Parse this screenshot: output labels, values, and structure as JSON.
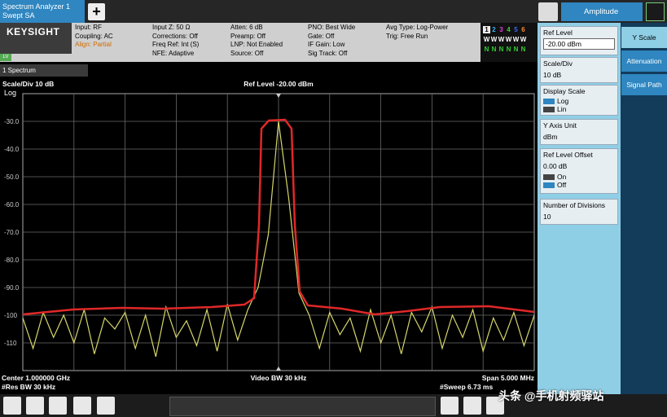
{
  "tab": {
    "line1": "Spectrum Analyzer 1",
    "line2": "Swept SA"
  },
  "menu": "Amplitude",
  "logo": "KEYSIGHT",
  "mode_badge": "LV",
  "status": [
    [
      "Input: RF",
      "Coupling: AC",
      "Align: Partial"
    ],
    [
      "Input Z: 50 Ω",
      "Corrections: Off",
      "Freq Ref: Int (S)",
      "NFE: Adaptive"
    ],
    [
      "Atten: 6 dB",
      "Preamp: Off",
      "LNP: Not Enabled",
      "Source: Off"
    ],
    [
      "PNO: Best Wide",
      "Gate: Off",
      "IF Gain: Low",
      "Sig Track: Off"
    ],
    [
      "Avg Type: Log-Power",
      "Trig: Free Run"
    ]
  ],
  "traces": {
    "numbers": [
      "1",
      "2",
      "3",
      "4",
      "5",
      "6"
    ],
    "types": [
      "W",
      "W",
      "W",
      "W",
      "W",
      "W"
    ],
    "detectors": [
      "N",
      "N",
      "N",
      "N",
      "N",
      "N"
    ]
  },
  "window": "1 Spectrum",
  "scale_div": "Scale/Div 10 dB",
  "ref_level": "Ref Level -20.00 dBm",
  "scale_type": "Log",
  "footer": {
    "center": "Center 1.000000 GHz",
    "video_bw": "Video BW 30 kHz",
    "span": "Span 5.000 MHz",
    "res_bw": "#Res BW 30 kHz",
    "sweep": "#Sweep 6.73 ms"
  },
  "plot": {
    "xlim": [
      997.5,
      1002.5
    ],
    "ylim": [
      -120,
      -20
    ],
    "yticks": [
      {
        "value": -30,
        "label": "-30.0"
      },
      {
        "value": -40,
        "label": "-40.0"
      },
      {
        "value": -50,
        "label": "-50.0"
      },
      {
        "value": -60,
        "label": "-60.0"
      },
      {
        "value": -70,
        "label": "-70.0"
      },
      {
        "value": -80,
        "label": "-80.0"
      },
      {
        "value": -90,
        "label": "-90.0"
      },
      {
        "value": -100,
        "label": "-100"
      },
      {
        "value": -110,
        "label": "-110"
      }
    ],
    "trace": {
      "color": "#d6d66a",
      "x": [
        997.5,
        997.6,
        997.7,
        997.8,
        997.9,
        998.0,
        998.1,
        998.2,
        998.3,
        998.4,
        998.5,
        998.6,
        998.7,
        998.8,
        998.9,
        999.0,
        999.1,
        999.2,
        999.3,
        999.4,
        999.5,
        999.6,
        999.7,
        999.8,
        999.9,
        1000.0,
        1000.1,
        1000.2,
        1000.3,
        1000.4,
        1000.5,
        1000.6,
        1000.7,
        1000.8,
        1000.9,
        1001.0,
        1001.1,
        1001.2,
        1001.3,
        1001.4,
        1001.5,
        1001.6,
        1001.7,
        1001.8,
        1001.9,
        1002.0,
        1002.1,
        1002.2,
        1002.3,
        1002.4,
        1002.5
      ],
      "values": [
        -101,
        -112,
        -99,
        -108,
        -100,
        -110,
        -98,
        -114,
        -101,
        -105,
        -99,
        -112,
        -100,
        -115,
        -97,
        -108,
        -102,
        -111,
        -98,
        -113,
        -96,
        -109,
        -98,
        -90,
        -71,
        -30,
        -58,
        -92,
        -100,
        -112,
        -99,
        -107,
        -101,
        -113,
        -98,
        -110,
        -100,
        -114,
        -99,
        -106,
        -97,
        -112,
        -100,
        -108,
        -98,
        -113,
        -101,
        -109,
        -99,
        -111,
        -100
      ]
    }
  },
  "panel": {
    "ref_level": {
      "label": "Ref Level",
      "value": "-20.00 dBm"
    },
    "scale_div": {
      "label": "Scale/Div",
      "value": "10 dB"
    },
    "display_scale": {
      "label": "Display Scale",
      "options": [
        "Log",
        "Lin"
      ]
    },
    "y_axis_unit": {
      "label": "Y Axis Unit",
      "value": "dBm"
    },
    "ref_level_offset": {
      "label": "Ref Level Offset",
      "value": "0.00 dB",
      "options": [
        "On",
        "Off"
      ]
    },
    "number_of_divisions": {
      "label": "Number of Divisions",
      "value": "10"
    }
  },
  "tabs": [
    "Y Scale",
    "Attenuation",
    "Signal Path"
  ],
  "watermark": "头条 @手机射频驿站"
}
